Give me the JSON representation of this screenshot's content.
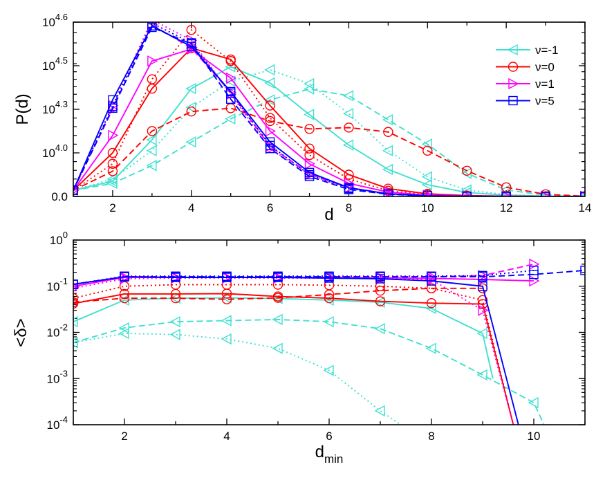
{
  "chart_data": [
    {
      "type": "line",
      "xlabel": "d",
      "ylabel": "P(d)",
      "xlim": [
        1,
        14
      ],
      "x_ticks": [
        2,
        4,
        6,
        8,
        10,
        12,
        14
      ],
      "y_tick_labels": [
        {
          "base": "0.0",
          "exp": ""
        },
        {
          "base": "10",
          "exp": "4.0"
        },
        {
          "base": "10",
          "exp": "4.3"
        },
        {
          "base": "10",
          "exp": "4.5"
        },
        {
          "base": "10",
          "exp": "4.6"
        }
      ],
      "y_tick_values": [
        0,
        10000,
        20000,
        31600,
        40000
      ],
      "ylim": [
        0,
        40000
      ],
      "legend": [
        {
          "label": "ν=-1",
          "color": "#40E0D0",
          "marker": "triangle-left"
        },
        {
          "label": "ν=0",
          "color": "#FF0000",
          "marker": "circle"
        },
        {
          "label": "ν=1",
          "color": "#FF00FF",
          "marker": "triangle-right"
        },
        {
          "label": "ν=5",
          "color": "#0000FF",
          "marker": "square"
        }
      ],
      "legend_position": "top-right",
      "series": [
        {
          "name": "ν=-1",
          "style": "solid",
          "color": "#40E0D0",
          "marker": "triangle-left",
          "x": [
            1,
            2,
            3,
            4,
            5,
            6,
            7,
            8,
            9,
            10,
            11,
            12,
            13,
            14
          ],
          "y": [
            1400,
            3500,
            13000,
            25500,
            31300,
            27000,
            18800,
            11800,
            6200,
            2700,
            900,
            300,
            100,
            50
          ]
        },
        {
          "name": "ν=-1",
          "style": "dotted",
          "color": "#40E0D0",
          "marker": "triangle-left",
          "x": [
            1,
            2,
            3,
            4,
            5,
            6,
            7,
            8,
            9,
            10,
            11,
            12,
            13,
            14
          ],
          "y": [
            1400,
            4000,
            10500,
            20500,
            27500,
            30500,
            26800,
            19000,
            10500,
            4500,
            1500,
            400,
            100,
            50
          ]
        },
        {
          "name": "ν=-1",
          "style": "dashed",
          "color": "#40E0D0",
          "marker": "triangle-left",
          "x": [
            1,
            2,
            3,
            4,
            5,
            6,
            7,
            8,
            9,
            10,
            11,
            12,
            13,
            14
          ],
          "y": [
            1400,
            3000,
            7100,
            12500,
            17800,
            22500,
            25400,
            23600,
            17600,
            12000,
            5300,
            1500,
            300,
            50
          ]
        },
        {
          "name": "ν=0",
          "style": "solid",
          "color": "#FF0000",
          "marker": "circle",
          "x": [
            1,
            2,
            3,
            4,
            5,
            6,
            7,
            8,
            9,
            10,
            11,
            12,
            13,
            14
          ],
          "y": [
            1400,
            10000,
            25500,
            35000,
            32800,
            21000,
            11000,
            5000,
            1800,
            600,
            200,
            60,
            20,
            10
          ]
        },
        {
          "name": "ν=0",
          "style": "dotted",
          "color": "#FF0000",
          "marker": "circle",
          "x": [
            1,
            2,
            3,
            4,
            5,
            6,
            7,
            8,
            9,
            10,
            11,
            12,
            13,
            14
          ],
          "y": [
            1400,
            7500,
            28000,
            38500,
            32500,
            18000,
            9500,
            4000,
            1300,
            400,
            100,
            30,
            10,
            5
          ]
        },
        {
          "name": "ν=0",
          "style": "dashed",
          "color": "#FF0000",
          "marker": "circle",
          "x": [
            1,
            2,
            3,
            4,
            5,
            6,
            7,
            8,
            9,
            10,
            11,
            12,
            13,
            14
          ],
          "y": [
            1400,
            5800,
            15000,
            19500,
            20300,
            17300,
            15500,
            15800,
            14800,
            10500,
            5900,
            2100,
            500,
            50
          ]
        },
        {
          "name": "ν=1",
          "style": "solid",
          "color": "#FF00FF",
          "marker": "triangle-right",
          "x": [
            1,
            2,
            3,
            4,
            5,
            6,
            7,
            8,
            9,
            10,
            11,
            12,
            13,
            14
          ],
          "y": [
            1400,
            14000,
            32500,
            34800,
            28300,
            15000,
            7500,
            3000,
            1000,
            300,
            100,
            30,
            10,
            5
          ]
        },
        {
          "name": "ν=1",
          "style": "dotted",
          "color": "#FF00FF",
          "marker": "triangle-right",
          "x": [
            1,
            2,
            3,
            4,
            5,
            6,
            7,
            8,
            9,
            10,
            11,
            12,
            13,
            14
          ],
          "y": [
            1400,
            21000,
            40500,
            36500,
            24000,
            11000,
            5000,
            2000,
            600,
            150,
            50,
            10,
            5,
            2
          ]
        },
        {
          "name": "ν=1",
          "style": "dashed",
          "color": "#FF00FF",
          "marker": "triangle-right",
          "x": [
            1,
            2,
            3,
            4,
            5,
            6,
            7,
            8,
            9,
            10,
            11,
            12,
            13,
            14
          ],
          "y": [
            1400,
            20000,
            39500,
            35000,
            24500,
            11500,
            5200,
            2000,
            600,
            150,
            50,
            10,
            5,
            2
          ]
        },
        {
          "name": "ν=5",
          "style": "solid",
          "color": "#0000FF",
          "marker": "square",
          "x": [
            1,
            2,
            3,
            4,
            5,
            6,
            7,
            8,
            9,
            10,
            11,
            12,
            13,
            14
          ],
          "y": [
            1400,
            22500,
            39300,
            35300,
            24700,
            12500,
            5500,
            2000,
            600,
            150,
            50,
            10,
            5,
            2
          ]
        },
        {
          "name": "ν=5",
          "style": "dotted",
          "color": "#0000FF",
          "marker": "square",
          "x": [
            1,
            2,
            3,
            4,
            5,
            6,
            7,
            8,
            9,
            10,
            11,
            12,
            13,
            14
          ],
          "y": [
            1400,
            20800,
            39800,
            36000,
            24300,
            11700,
            5000,
            1800,
            550,
            130,
            40,
            10,
            5,
            2
          ]
        },
        {
          "name": "ν=5",
          "style": "dashed",
          "color": "#0000FF",
          "marker": "square",
          "x": [
            1,
            2,
            3,
            4,
            5,
            6,
            7,
            8,
            9,
            10,
            11,
            12,
            13,
            14
          ],
          "y": [
            1400,
            20300,
            39000,
            35800,
            22700,
            11000,
            4600,
            1600,
            500,
            120,
            40,
            10,
            5,
            2
          ]
        }
      ]
    },
    {
      "type": "line",
      "xlabel_main": "d",
      "xlabel_sub": "min",
      "ylabel": "<δ>",
      "xlim": [
        1,
        11
      ],
      "x_ticks": [
        2,
        4,
        6,
        8,
        10
      ],
      "y_scale": "log",
      "ylim": [
        0.0001,
        1
      ],
      "y_tick_labels": [
        {
          "base": "10",
          "exp": "-4"
        },
        {
          "base": "10",
          "exp": "-3"
        },
        {
          "base": "10",
          "exp": "-2"
        },
        {
          "base": "10",
          "exp": "-1"
        },
        {
          "base": "10",
          "exp": "0"
        }
      ],
      "y_tick_values": [
        0.0001,
        0.001,
        0.01,
        0.1,
        1
      ],
      "series": [
        {
          "name": "ν=-1",
          "style": "solid",
          "color": "#40E0D0",
          "marker": "triangle-left",
          "x": [
            1,
            2,
            3,
            4,
            5,
            6,
            7,
            8,
            9,
            9.2
          ],
          "y": [
            0.017,
            0.05,
            0.055,
            0.056,
            0.054,
            0.05,
            0.045,
            0.033,
            0.0095,
            0.001
          ]
        },
        {
          "name": "ν=-1",
          "style": "dotted",
          "color": "#40E0D0",
          "marker": "triangle-left",
          "x": [
            1,
            2,
            3,
            4,
            5,
            6,
            7,
            7.4
          ],
          "y": [
            0.006,
            0.0095,
            0.009,
            0.0072,
            0.0045,
            0.0015,
            0.0002,
            0.0001
          ]
        },
        {
          "name": "ν=-1",
          "style": "dashed",
          "color": "#40E0D0",
          "marker": "triangle-left",
          "x": [
            1,
            2,
            3,
            4,
            5,
            6,
            7,
            8,
            9,
            10,
            10.2
          ],
          "y": [
            0.006,
            0.0125,
            0.017,
            0.018,
            0.019,
            0.017,
            0.012,
            0.0045,
            0.0012,
            0.0003,
            0.0001
          ]
        },
        {
          "name": "ν=0",
          "style": "solid",
          "color": "#FF0000",
          "marker": "circle",
          "x": [
            1,
            2,
            3,
            4,
            5,
            6,
            7,
            8,
            9,
            9.6
          ],
          "y": [
            0.042,
            0.068,
            0.068,
            0.069,
            0.06,
            0.055,
            0.047,
            0.043,
            0.041,
            0.0001
          ]
        },
        {
          "name": "ν=0",
          "style": "dotted",
          "color": "#FF0000",
          "marker": "circle",
          "x": [
            1,
            2,
            3,
            4,
            5,
            6,
            7,
            8,
            9,
            9.6
          ],
          "y": [
            0.055,
            0.1,
            0.108,
            0.108,
            0.108,
            0.105,
            0.1,
            0.09,
            0.05,
            0.0001
          ]
        },
        {
          "name": "ν=0",
          "style": "dashed",
          "color": "#FF0000",
          "marker": "circle",
          "x": [
            1,
            2,
            3,
            4,
            5,
            6,
            7,
            8,
            9
          ],
          "y": [
            0.045,
            0.055,
            0.055,
            0.052,
            0.056,
            0.066,
            0.08,
            0.09,
            0.09
          ]
        },
        {
          "name": "ν=1",
          "style": "solid",
          "color": "#FF00FF",
          "marker": "triangle-right",
          "x": [
            1,
            2,
            3,
            4,
            5,
            6,
            7,
            8,
            9,
            10
          ],
          "y": [
            0.1,
            0.155,
            0.155,
            0.155,
            0.155,
            0.155,
            0.152,
            0.148,
            0.14,
            0.13
          ]
        },
        {
          "name": "ν=1",
          "style": "dotted",
          "color": "#FF00FF",
          "marker": "triangle-right",
          "x": [
            1,
            2,
            3,
            4,
            5,
            6,
            7,
            8,
            9,
            9.6
          ],
          "y": [
            0.09,
            0.145,
            0.15,
            0.15,
            0.15,
            0.15,
            0.15,
            0.14,
            0.03,
            0.0001
          ]
        },
        {
          "name": "ν=1",
          "style": "dashed",
          "color": "#FF00FF",
          "marker": "triangle-right",
          "x": [
            1,
            2,
            3,
            4,
            5,
            6,
            7,
            8,
            9,
            10
          ],
          "y": [
            0.1,
            0.155,
            0.155,
            0.155,
            0.155,
            0.155,
            0.155,
            0.16,
            0.17,
            0.3
          ]
        },
        {
          "name": "ν=5",
          "style": "solid",
          "color": "#0000FF",
          "marker": "square",
          "x": [
            1,
            2,
            3,
            4,
            5,
            6,
            7,
            8,
            9,
            9.7
          ],
          "y": [
            0.11,
            0.16,
            0.155,
            0.155,
            0.155,
            0.15,
            0.145,
            0.13,
            0.1,
            0.0001
          ]
        },
        {
          "name": "ν=5",
          "style": "dotted",
          "color": "#0000FF",
          "marker": "square",
          "x": [
            1,
            2,
            3,
            4,
            5,
            6,
            7,
            8,
            9,
            10
          ],
          "y": [
            0.11,
            0.165,
            0.165,
            0.165,
            0.165,
            0.165,
            0.165,
            0.165,
            0.17,
            0.22
          ]
        },
        {
          "name": "ν=5",
          "style": "dashed",
          "color": "#0000FF",
          "marker": "square",
          "x": [
            1,
            2,
            3,
            4,
            5,
            6,
            7,
            8,
            9,
            10,
            11
          ],
          "y": [
            0.11,
            0.16,
            0.16,
            0.16,
            0.16,
            0.16,
            0.16,
            0.16,
            0.16,
            0.18,
            0.22
          ]
        }
      ]
    }
  ]
}
